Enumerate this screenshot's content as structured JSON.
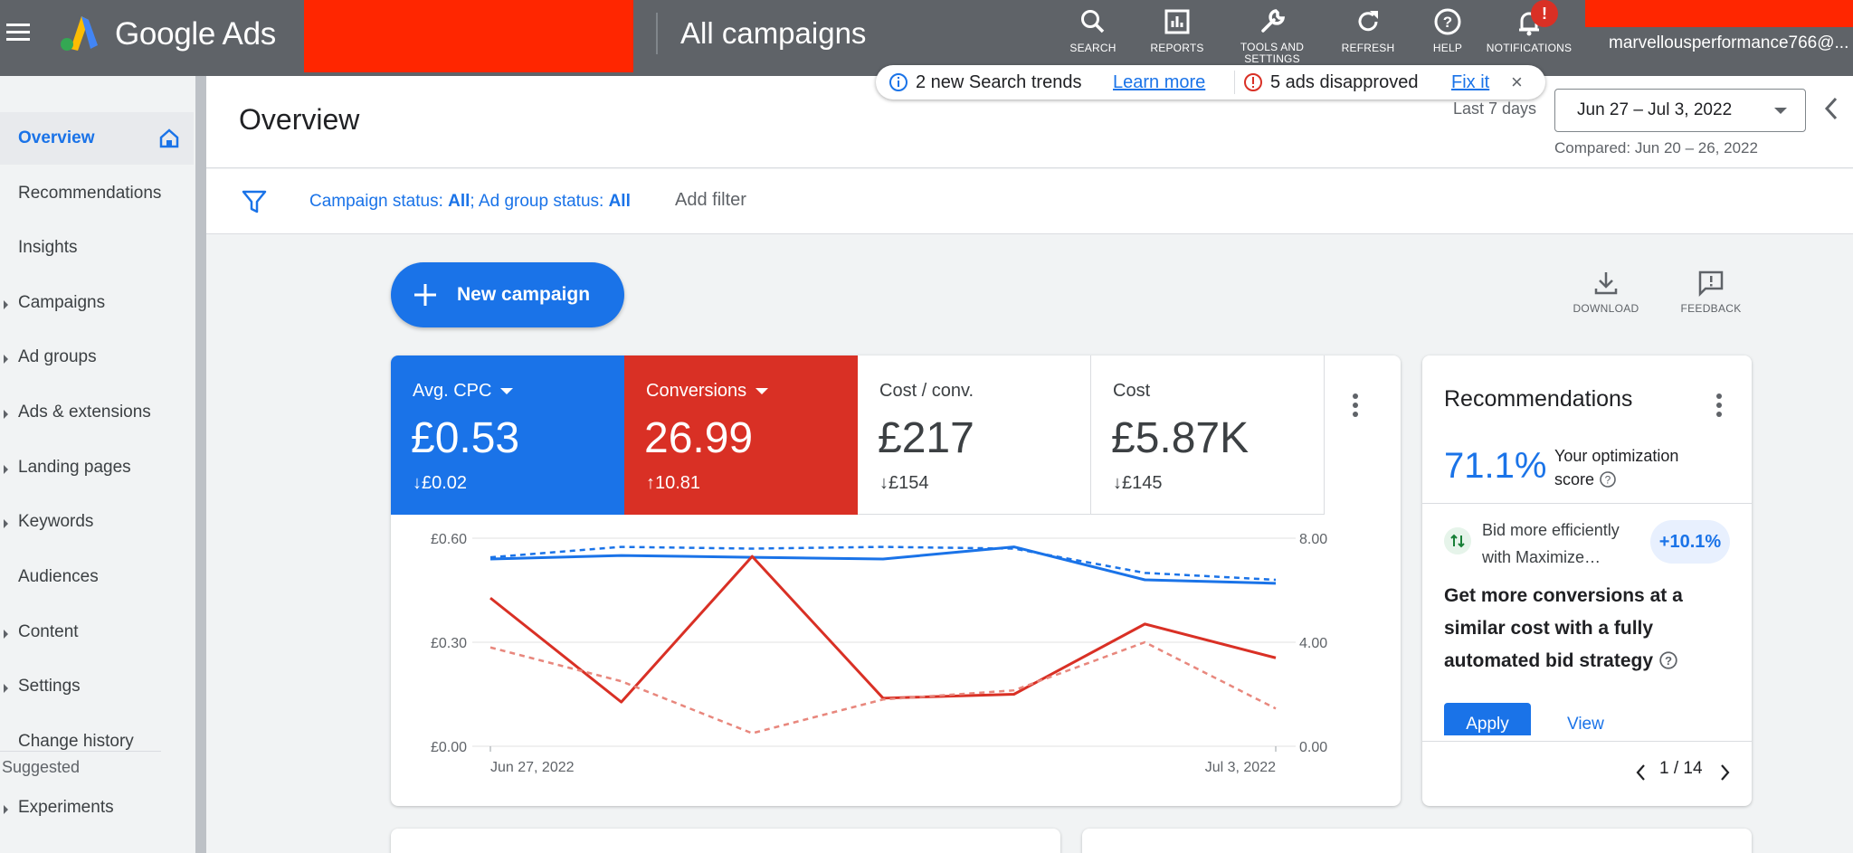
{
  "topbar": {
    "product_name": "Google Ads",
    "page_context": "All campaigns",
    "tools": [
      {
        "label": "SEARCH",
        "icon": "search-icon"
      },
      {
        "label": "REPORTS",
        "icon": "reports-icon"
      },
      {
        "label": "TOOLS AND SETTINGS",
        "icon": "wrench-icon"
      },
      {
        "label": "REFRESH",
        "icon": "refresh-icon"
      },
      {
        "label": "HELP",
        "icon": "help-icon"
      },
      {
        "label": "NOTIFICATIONS",
        "icon": "bell-icon"
      }
    ],
    "notification_badge": "!",
    "user_email": "marvellousperformance766@..."
  },
  "sidebar": {
    "items": [
      {
        "label": "Overview"
      },
      {
        "label": "Recommendations"
      },
      {
        "label": "Insights"
      },
      {
        "label": "Campaigns"
      },
      {
        "label": "Ad groups"
      },
      {
        "label": "Ads & extensions"
      },
      {
        "label": "Landing pages"
      },
      {
        "label": "Keywords"
      },
      {
        "label": "Audiences"
      },
      {
        "label": "Content"
      },
      {
        "label": "Settings"
      },
      {
        "label": "Change history"
      }
    ],
    "section_label": "Suggested",
    "suggested_items": [
      {
        "label": "Experiments"
      }
    ]
  },
  "header": {
    "title": "Overview",
    "trends": {
      "text": "2 new Search trends",
      "link": "Learn more",
      "alert_text": "5 ads disapproved",
      "alert_link": "Fix it",
      "dismiss": "×"
    },
    "date_range_label": "Last 7 days",
    "date_range_value": "Jun 27 – Jul 3, 2022",
    "compared_text": "Compared: Jun 20 – 26, 2022"
  },
  "filters": {
    "campaign_status_label": "Campaign status: ",
    "campaign_status_value": "All",
    "ad_group_status_label": "; Ad group status: ",
    "ad_group_status_value": "All",
    "add_filter": "Add filter"
  },
  "actions": {
    "new_campaign": "New campaign",
    "download": "DOWNLOAD",
    "feedback": "FEEDBACK"
  },
  "metrics": [
    {
      "name": "Avg. CPC",
      "value": "£0.53",
      "delta": "£0.02",
      "direction": "down",
      "color": "#1a73e8"
    },
    {
      "name": "Conversions",
      "value": "26.99",
      "delta": "10.81",
      "direction": "up",
      "color": "#d93025"
    },
    {
      "name": "Cost / conv.",
      "value": "£217",
      "delta": "£154",
      "direction": "down"
    },
    {
      "name": "Cost",
      "value": "£5.87K",
      "delta": "£145",
      "direction": "down"
    }
  ],
  "chart_data": {
    "type": "line",
    "x": [
      "Jun 27, 2022",
      "Jun 28, 2022",
      "Jun 29, 2022",
      "Jun 30, 2022",
      "Jul 1, 2022",
      "Jul 2, 2022",
      "Jul 3, 2022"
    ],
    "x_tick_labels": [
      "Jun 27, 2022",
      "Jul 3, 2022"
    ],
    "y_left": {
      "ticks": [
        "£0.00",
        "£0.30",
        "£0.60"
      ],
      "lim": [
        0,
        0.6
      ]
    },
    "y_right": {
      "ticks": [
        "0.00",
        "4.00",
        "8.00"
      ],
      "lim": [
        0,
        8
      ]
    },
    "series": [
      {
        "axis": "left",
        "color": "#1a73e8",
        "dashed": false,
        "values": [
          0.54,
          0.55,
          0.545,
          0.54,
          0.575,
          0.48,
          0.47
        ]
      },
      {
        "axis": "left",
        "color": "#1a73e8",
        "dashed": true,
        "values": [
          0.545,
          0.575,
          0.57,
          0.575,
          0.57,
          0.5,
          0.48
        ]
      },
      {
        "axis": "right",
        "color": "#d93025",
        "dashed": false,
        "values": [
          5.7,
          1.7,
          7.3,
          1.85,
          2.0,
          4.7,
          3.4
        ]
      },
      {
        "axis": "right",
        "color": "#e8877d",
        "dashed": true,
        "values": [
          3.8,
          2.5,
          0.5,
          1.8,
          2.15,
          4.0,
          1.45
        ]
      }
    ],
    "grid": true
  },
  "recommendations": {
    "title": "Recommendations",
    "score": "71.1%",
    "score_label": "Your optimization score",
    "bid_text": "Bid more efficiently with Maximize…",
    "uplift": "+10.1%",
    "headline": "Get more conversions at a similar cost with a fully automated bid strategy",
    "apply": "Apply",
    "view": "View",
    "pager": "1 / 14"
  }
}
